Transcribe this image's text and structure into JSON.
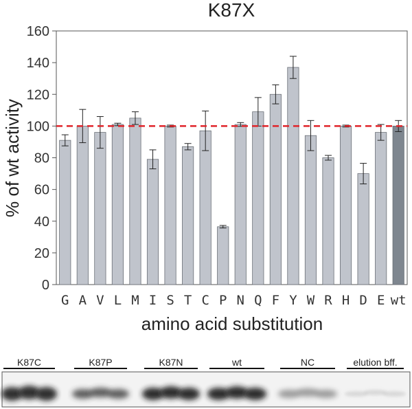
{
  "chart_data": {
    "type": "bar",
    "title": "K87X",
    "xlabel": "amino acid substitution",
    "ylabel": "% of wt activity",
    "ylim": [
      0,
      160
    ],
    "yticks": [
      0,
      20,
      40,
      60,
      80,
      100,
      120,
      140,
      160
    ],
    "reference_line": {
      "value": 100,
      "style": "dashed",
      "color": "#e0242a"
    },
    "categories": [
      "G",
      "A",
      "V",
      "L",
      "M",
      "I",
      "S",
      "T",
      "C",
      "P",
      "N",
      "Q",
      "F",
      "Y",
      "W",
      "R",
      "H",
      "D",
      "E",
      "wt"
    ],
    "values": [
      91,
      100,
      96,
      101,
      105,
      79,
      100,
      87,
      97,
      36.5,
      101,
      109,
      120,
      137,
      94,
      80,
      100,
      70,
      96,
      100
    ],
    "errors": [
      3.5,
      10.5,
      10,
      0.8,
      4,
      6,
      0.6,
      2,
      12.5,
      0.8,
      1.2,
      9,
      6,
      7,
      9.5,
      1.5,
      0.6,
      6.5,
      5,
      3.5
    ],
    "bar_color": "#c0c4cc",
    "highlight_color": "#7e868f",
    "highlight_category": "wt",
    "grid": false
  },
  "gel": {
    "lanes": [
      "K87C",
      "K87P",
      "K87N",
      "wt",
      "NC",
      "elution bff."
    ]
  }
}
